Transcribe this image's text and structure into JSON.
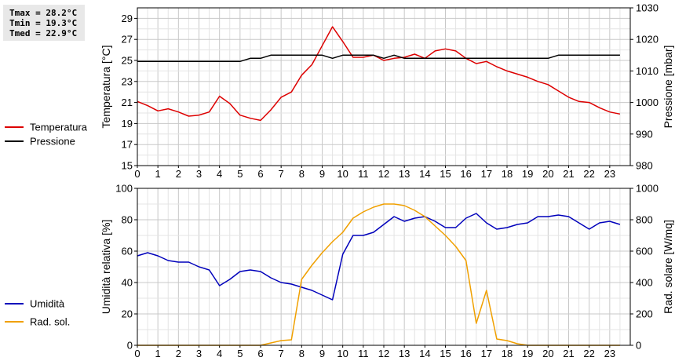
{
  "stats": {
    "tmax": "Tmax = 28.2°C",
    "tmin": "Tmin = 19.3°C",
    "tmed": "Tmed = 22.9°C"
  },
  "chart_data": [
    {
      "type": "line",
      "title": "",
      "xlabel": "",
      "ylabel": "Temperatura [°C]",
      "y2label": "Pressione [mbar]",
      "xlim": [
        0,
        24
      ],
      "ylim": [
        15,
        30
      ],
      "y2lim": [
        980,
        1030
      ],
      "xticks": [
        "0",
        "1",
        "2",
        "3",
        "4",
        "5",
        "6",
        "7",
        "8",
        "9",
        "10",
        "11",
        "12",
        "13",
        "14",
        "15",
        "16",
        "17",
        "18",
        "19",
        "20",
        "21",
        "22",
        "23"
      ],
      "yticks": [
        "15",
        "17",
        "19",
        "21",
        "23",
        "25",
        "27",
        "29"
      ],
      "y2ticks": [
        "980",
        "990",
        "1000",
        "1010",
        "1020",
        "1030"
      ],
      "grid": true,
      "legend_position": "left",
      "series": [
        {
          "name": "Temperatura",
          "axis": "left",
          "color": "#dd0000",
          "x": [
            0,
            0.5,
            1,
            1.5,
            2,
            2.5,
            3,
            3.5,
            4,
            4.5,
            5,
            5.5,
            6,
            6.5,
            7,
            7.5,
            8,
            8.5,
            9,
            9.5,
            10,
            10.5,
            11,
            11.5,
            12,
            12.5,
            13,
            13.5,
            14,
            14.5,
            15,
            15.5,
            16,
            16.5,
            17,
            17.5,
            18,
            18.5,
            19,
            19.5,
            20,
            20.5,
            21,
            21.5,
            22,
            22.5,
            23,
            23.5
          ],
          "values": [
            21.1,
            20.7,
            20.2,
            20.4,
            20.1,
            19.7,
            19.8,
            20.1,
            21.6,
            20.9,
            19.8,
            19.5,
            19.3,
            20.3,
            21.5,
            22.0,
            23.6,
            24.6,
            26.4,
            28.2,
            26.8,
            25.3,
            25.3,
            25.5,
            25.0,
            25.2,
            25.3,
            25.6,
            25.2,
            25.9,
            26.1,
            25.9,
            25.2,
            24.7,
            24.9,
            24.4,
            24.0,
            23.7,
            23.4,
            23.0,
            22.7,
            22.1,
            21.5,
            21.1,
            21.0,
            20.5,
            20.1,
            19.9
          ]
        },
        {
          "name": "Pressione",
          "axis": "right",
          "color": "#000000",
          "x": [
            0,
            0.5,
            1,
            1.5,
            2,
            2.5,
            3,
            3.5,
            4,
            4.5,
            5,
            5.5,
            6,
            6.5,
            7,
            7.5,
            8,
            8.5,
            9,
            9.5,
            10,
            10.5,
            11,
            11.5,
            12,
            12.5,
            13,
            13.5,
            14,
            14.5,
            15,
            15.5,
            16,
            16.5,
            17,
            17.5,
            18,
            18.5,
            19,
            19.5,
            20,
            20.5,
            21,
            21.5,
            22,
            22.5,
            23,
            23.5
          ],
          "values": [
            1013,
            1013,
            1013,
            1013,
            1013,
            1013,
            1013,
            1013,
            1013,
            1013,
            1013,
            1014,
            1014,
            1015,
            1015,
            1015,
            1015,
            1015,
            1015,
            1014,
            1015,
            1015,
            1015,
            1015,
            1014,
            1015,
            1014,
            1014,
            1014,
            1014,
            1014,
            1014,
            1014,
            1014,
            1014,
            1014,
            1014,
            1014,
            1014,
            1014,
            1014,
            1015,
            1015,
            1015,
            1015,
            1015,
            1015,
            1015
          ]
        }
      ]
    },
    {
      "type": "line",
      "title": "",
      "xlabel": "",
      "ylabel": "Umidità relativa [%]",
      "y2label": "Rad. solare [W/mq]",
      "xlim": [
        0,
        24
      ],
      "ylim": [
        0,
        100
      ],
      "y2lim": [
        0,
        1000
      ],
      "xticks": [
        "0",
        "1",
        "2",
        "3",
        "4",
        "5",
        "6",
        "7",
        "8",
        "9",
        "10",
        "11",
        "12",
        "13",
        "14",
        "15",
        "16",
        "17",
        "18",
        "19",
        "20",
        "21",
        "22",
        "23"
      ],
      "yticks": [
        "0",
        "20",
        "40",
        "60",
        "80",
        "100"
      ],
      "y2ticks": [
        "0",
        "200",
        "400",
        "600",
        "800",
        "1000"
      ],
      "grid": true,
      "legend_position": "left",
      "series": [
        {
          "name": "Umidità",
          "axis": "left",
          "color": "#0000bb",
          "x": [
            0,
            0.5,
            1,
            1.5,
            2,
            2.5,
            3,
            3.5,
            4,
            4.5,
            5,
            5.5,
            6,
            6.5,
            7,
            7.5,
            8,
            8.5,
            9,
            9.5,
            10,
            10.5,
            11,
            11.5,
            12,
            12.5,
            13,
            13.5,
            14,
            14.5,
            15,
            15.5,
            16,
            16.5,
            17,
            17.5,
            18,
            18.5,
            19,
            19.5,
            20,
            20.5,
            21,
            21.5,
            22,
            22.5,
            23,
            23.5
          ],
          "values": [
            57,
            59,
            57,
            54,
            53,
            53,
            50,
            48,
            38,
            42,
            47,
            48,
            47,
            43,
            40,
            39,
            37,
            35,
            32,
            29,
            58,
            70,
            70,
            72,
            77,
            82,
            79,
            81,
            82,
            79,
            75,
            75,
            81,
            84,
            78,
            74,
            75,
            77,
            78,
            82,
            82,
            83,
            82,
            78,
            74,
            78,
            79,
            77
          ]
        },
        {
          "name": "Rad. sol.",
          "axis": "right",
          "color": "#f0a000",
          "x": [
            0,
            0.5,
            1,
            1.5,
            2,
            2.5,
            3,
            3.5,
            4,
            4.5,
            5,
            5.5,
            6,
            6.5,
            7,
            7.5,
            8,
            8.5,
            9,
            9.5,
            10,
            10.5,
            11,
            11.5,
            12,
            12.5,
            13,
            13.5,
            14,
            14.5,
            15,
            15.5,
            16,
            16.5,
            17,
            17.5,
            18,
            18.5,
            19,
            19.5,
            20,
            20.5,
            21,
            21.5,
            22,
            22.5,
            23,
            23.5
          ],
          "values": [
            0,
            0,
            0,
            0,
            0,
            0,
            0,
            0,
            0,
            0,
            0,
            0,
            0,
            15,
            30,
            35,
            420,
            510,
            590,
            660,
            720,
            810,
            850,
            880,
            900,
            900,
            890,
            860,
            820,
            760,
            700,
            630,
            540,
            140,
            350,
            40,
            30,
            10,
            0,
            0,
            0,
            0,
            0,
            0,
            0,
            0,
            0,
            0
          ]
        }
      ]
    }
  ]
}
